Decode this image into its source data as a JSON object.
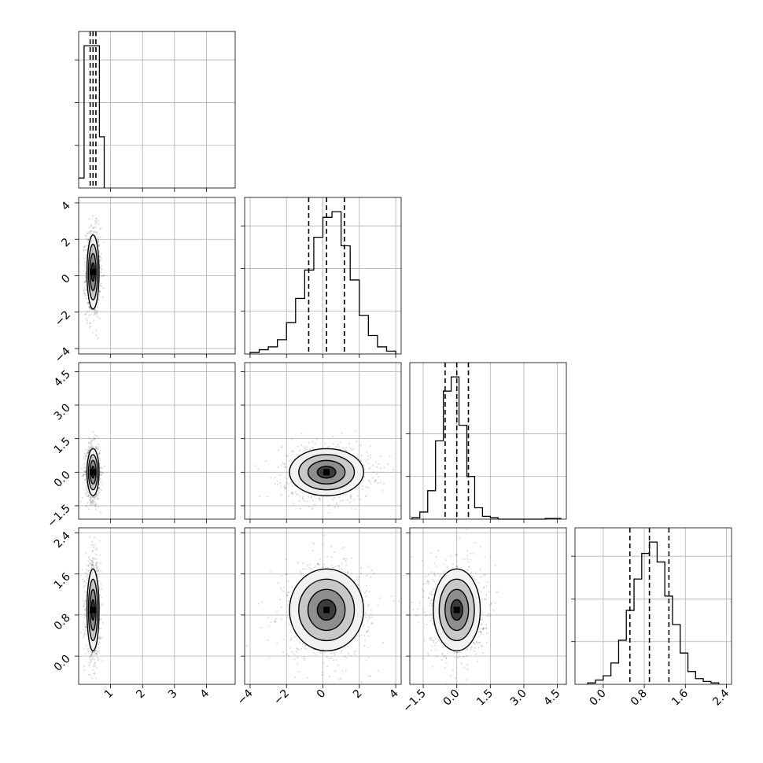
{
  "chart_data": {
    "type": "corner",
    "grid": true,
    "parameters": [
      {
        "index": 0,
        "xlim": [
          0.0,
          4.9
        ],
        "ticks": [
          1,
          2,
          3,
          4
        ],
        "tick_labels": [
          "1",
          "2",
          "3",
          "4"
        ],
        "mean": 0.45,
        "sd": 0.09,
        "quantiles": [
          0.36,
          0.45,
          0.54
        ],
        "hist_edges": [
          0.0,
          0.17,
          0.35,
          0.5,
          0.65,
          0.8
        ],
        "hist_counts": [
          0.07,
          1.0,
          1.0,
          1.0,
          0.36
        ],
        "hist_yticks": [
          0.3,
          0.6,
          0.9
        ]
      },
      {
        "index": 1,
        "xlim": [
          -4.3,
          4.3
        ],
        "ticks": [
          -4,
          -2,
          0,
          2,
          4
        ],
        "tick_labels": [
          "−4",
          "−2",
          "0",
          "2",
          "4"
        ],
        "mean": 0.2,
        "sd": 0.97,
        "quantiles": [
          -0.78,
          0.2,
          1.18
        ],
        "hist_edges": [
          -4.0,
          -3.5,
          -3.0,
          -2.5,
          -2.0,
          -1.5,
          -1.0,
          -0.5,
          0.0,
          0.5,
          1.0,
          1.5,
          2.0,
          2.5,
          3.0,
          3.5,
          4.0
        ],
        "hist_counts": [
          0.01,
          0.03,
          0.05,
          0.1,
          0.22,
          0.39,
          0.59,
          0.82,
          0.96,
          1.0,
          0.76,
          0.52,
          0.27,
          0.13,
          0.05,
          0.02
        ],
        "hist_yticks": [
          0.3,
          0.6,
          0.9
        ]
      },
      {
        "index": 2,
        "xlim": [
          -2.1,
          4.9
        ],
        "ticks": [
          -1.5,
          0.0,
          1.5,
          3.0,
          4.5
        ],
        "tick_labels": [
          "−1.5",
          "0.0",
          "1.5",
          "3.0",
          "4.5"
        ],
        "mean": 0.0,
        "sd": 0.5,
        "quantiles": [
          -0.52,
          0.0,
          0.52
        ],
        "hist_edges": [
          -2.0,
          -1.65,
          -1.3,
          -0.95,
          -0.6,
          -0.25,
          0.1,
          0.45,
          0.8,
          1.15,
          1.5,
          1.85,
          2.2,
          2.55,
          2.9,
          3.25,
          3.6,
          3.95,
          4.3,
          4.65
        ],
        "hist_counts": [
          0.01,
          0.05,
          0.2,
          0.55,
          0.9,
          1.0,
          0.66,
          0.3,
          0.08,
          0.02,
          0.01,
          0.0,
          0.0,
          0.0,
          0.0,
          0.0,
          0.0,
          0.005,
          0.005
        ],
        "hist_yticks": [
          0.3,
          0.6
        ]
      },
      {
        "index": 3,
        "xlim": [
          -0.55,
          2.5
        ],
        "ticks": [
          0.0,
          0.8,
          1.6,
          2.4
        ],
        "tick_labels": [
          "0.0",
          "0.8",
          "1.6",
          "2.4"
        ],
        "mean": 0.9,
        "sd": 0.38,
        "quantiles": [
          0.52,
          0.9,
          1.28
        ],
        "hist_edges": [
          -0.3,
          -0.15,
          0.0,
          0.15,
          0.3,
          0.45,
          0.6,
          0.75,
          0.9,
          1.05,
          1.2,
          1.35,
          1.5,
          1.65,
          1.8,
          1.95,
          2.1,
          2.25
        ],
        "hist_counts": [
          0.01,
          0.03,
          0.06,
          0.15,
          0.31,
          0.52,
          0.74,
          0.92,
          1.0,
          0.86,
          0.62,
          0.42,
          0.22,
          0.09,
          0.04,
          0.02,
          0.01
        ],
        "hist_yticks": [
          0.3,
          0.6,
          0.9
        ]
      }
    ],
    "pair_panels": [
      {
        "x": 0,
        "y": 1,
        "center": [
          0.45,
          0.2
        ]
      },
      {
        "x": 0,
        "y": 2,
        "center": [
          0.45,
          0.0
        ]
      },
      {
        "x": 1,
        "y": 2,
        "center": [
          0.2,
          0.0
        ]
      },
      {
        "x": 0,
        "y": 3,
        "center": [
          0.45,
          0.9
        ]
      },
      {
        "x": 1,
        "y": 3,
        "center": [
          0.2,
          0.9
        ]
      },
      {
        "x": 2,
        "y": 3,
        "center": [
          0.0,
          0.9
        ]
      }
    ],
    "contour_levels_sigma": [
      0.5,
      1.0,
      1.5,
      2.0
    ]
  }
}
